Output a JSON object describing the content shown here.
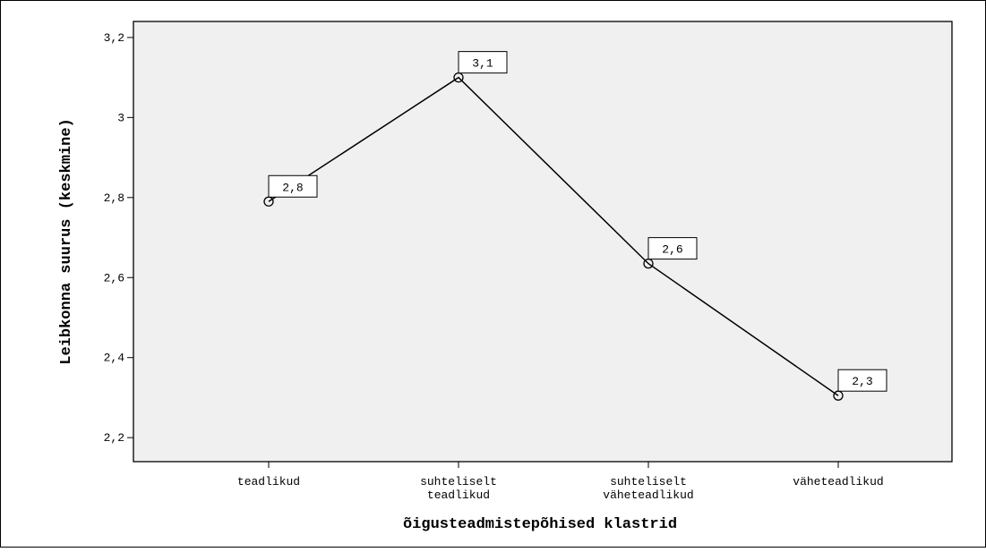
{
  "chart_data": {
    "type": "line",
    "title": "",
    "xlabel": "õigusteadmistepõhised klastrid",
    "ylabel": "Leibkonna suurus (keskmine)",
    "categories": [
      [
        "teadlikud"
      ],
      [
        "suhteliselt",
        "teadlikud"
      ],
      [
        "suhteliselt",
        "väheteadlikud"
      ],
      [
        "väheteadlikud"
      ]
    ],
    "series": [
      {
        "values": [
          2.79,
          3.1,
          2.635,
          2.305
        ]
      }
    ],
    "data_labels": [
      "2,8",
      "3,1",
      "2,6",
      "2,3"
    ],
    "ylim": [
      2.14,
      3.24
    ],
    "y_ticks": [
      2.2,
      2.4,
      2.6,
      2.8,
      3.0,
      3.2
    ],
    "y_tick_labels": [
      "2,2",
      "2,4",
      "2,6",
      "2,8",
      "3",
      "3,2"
    ],
    "grid": false,
    "legend": "none",
    "colors": {
      "plot_background": "#f0f0f0",
      "line": "#000000"
    }
  }
}
